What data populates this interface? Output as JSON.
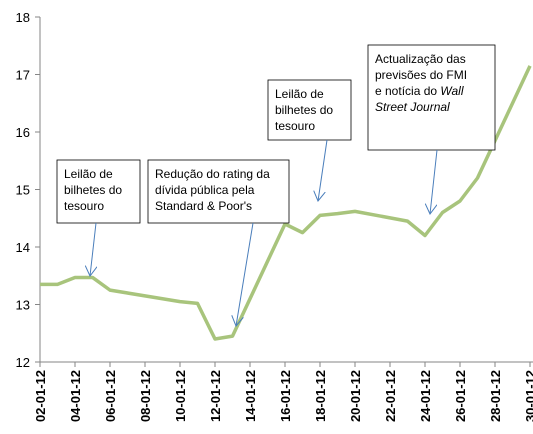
{
  "chart_data": {
    "type": "line",
    "x": [
      "02-01-12",
      "03-01-12",
      "04-01-12",
      "05-01-12",
      "06-01-12",
      "09-01-12",
      "10-01-12",
      "11-01-12",
      "12-01-12",
      "13-01-12",
      "16-01-12",
      "17-01-12",
      "18-01-12",
      "19-01-12",
      "20-01-12",
      "23-01-12",
      "24-01-12",
      "25-01-12",
      "26-01-12",
      "27-01-12",
      "30-01-12"
    ],
    "series": [
      {
        "color": "#a8c47c",
        "values": [
          13.35,
          13.35,
          13.47,
          13.47,
          13.25,
          13.1,
          13.05,
          13.02,
          12.4,
          12.45,
          14.4,
          14.25,
          14.55,
          14.58,
          14.62,
          14.45,
          14.2,
          14.6,
          14.8,
          15.2,
          17.15
        ]
      }
    ],
    "xticks": [
      "02-01-12",
      "04-01-12",
      "06-01-12",
      "08-01-12",
      "10-01-12",
      "12-01-12",
      "14-01-12",
      "16-01-12",
      "18-01-12",
      "20-01-12",
      "22-01-12",
      "24-01-12",
      "26-01-12",
      "28-01-12",
      "30-01-12"
    ],
    "ylim": [
      12,
      18
    ],
    "yticks": [
      12,
      13,
      14,
      15,
      16,
      17,
      18
    ],
    "annotations": [
      {
        "lines": [
          [
            {
              "text": "Leilão de"
            }
          ],
          [
            {
              "text": "bilhetes do"
            }
          ],
          [
            {
              "text": "tesouro"
            }
          ]
        ]
      },
      {
        "lines": [
          [
            {
              "text": "Redução do rating da"
            }
          ],
          [
            {
              "text": "dívida pública pela"
            }
          ],
          [
            {
              "text": "Standard & Poor's"
            }
          ]
        ]
      },
      {
        "lines": [
          [
            {
              "text": "Leilão de"
            }
          ],
          [
            {
              "text": "bilhetes do"
            }
          ],
          [
            {
              "text": "tesouro"
            }
          ]
        ]
      },
      {
        "lines": [
          [
            {
              "text": "Actualização das"
            }
          ],
          [
            {
              "text": "previsões do FMI"
            }
          ],
          [
            {
              "text": "e notícia do "
            },
            {
              "text": "Wall",
              "italic": true
            }
          ],
          [
            {
              "text": "Street Journal",
              "italic": true
            }
          ]
        ]
      }
    ]
  }
}
